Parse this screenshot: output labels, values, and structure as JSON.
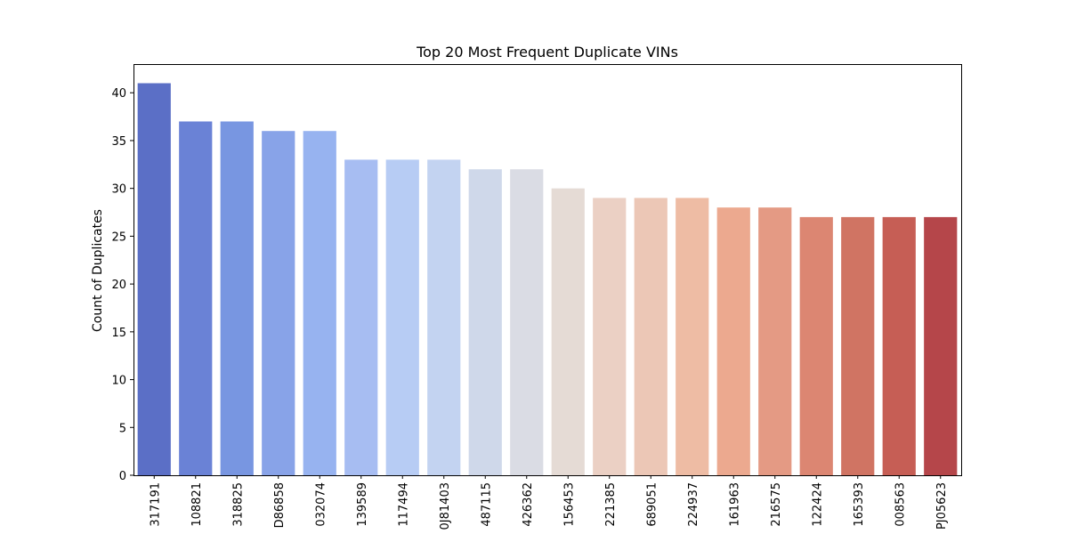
{
  "chart_data": {
    "type": "bar",
    "title": "Top 20 Most Frequent Duplicate VINs",
    "xlabel": "",
    "ylabel": "Count of Duplicates",
    "ylim": [
      0,
      43
    ],
    "yticks": [
      0,
      5,
      10,
      15,
      20,
      25,
      30,
      35,
      40
    ],
    "grid": false,
    "legend": "none",
    "categories": [
      "317191",
      "108821",
      "318825",
      "D86858",
      "032074",
      "139589",
      "117494",
      "0J81403",
      "487115",
      "426362",
      "156453",
      "221385",
      "689051",
      "224937",
      "161963",
      "216575",
      "122424",
      "165393",
      "008563",
      "PJ05623"
    ],
    "values": [
      41,
      37,
      37,
      36,
      36,
      33,
      33,
      33,
      32,
      32,
      30,
      29,
      29,
      29,
      28,
      28,
      27,
      27,
      27,
      27
    ],
    "colors": [
      "#5b6fc6",
      "#6a82d6",
      "#7896e1",
      "#88a3e8",
      "#97b3f0",
      "#a7bdf2",
      "#b7ccf4",
      "#c3d3f1",
      "#cfd8ea",
      "#dadce4",
      "#e5dbd5",
      "#ebd0c4",
      "#ecc7b6",
      "#eebca4",
      "#eca98f",
      "#e49a84",
      "#dc8672",
      "#d07463",
      "#c65e55",
      "#b5464a"
    ]
  }
}
